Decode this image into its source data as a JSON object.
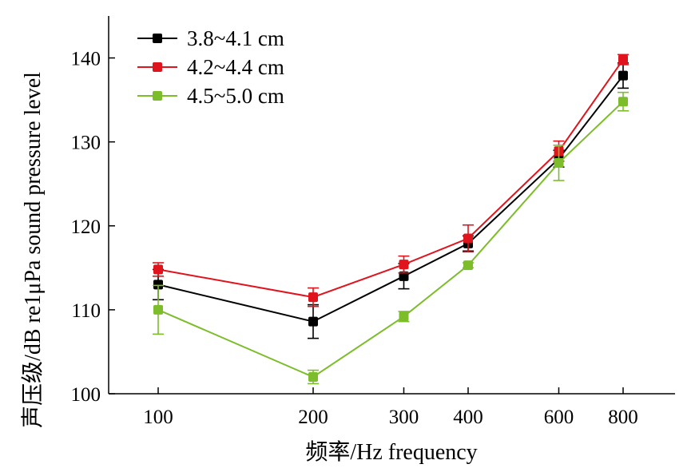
{
  "chart_data": {
    "type": "line",
    "xscale": "log",
    "x": [
      100,
      200,
      300,
      400,
      600,
      800
    ],
    "xticks": [
      "100",
      "200",
      "300",
      "400",
      "600",
      "800"
    ],
    "ylim": [
      100,
      145
    ],
    "yticks": [
      "100",
      "110",
      "120",
      "130",
      "140"
    ],
    "xlabel": "频率/Hz frequency",
    "ylabel": "声压级/dB re1μPa sound pressure level",
    "legend_position": "top-left",
    "series": [
      {
        "name": "3.8~4.1 cm",
        "color": "#000000",
        "values": [
          113.0,
          108.6,
          114.0,
          117.9,
          128.0,
          137.9
        ],
        "errors": [
          1.8,
          2.0,
          1.5,
          0.9,
          1.0,
          1.5
        ]
      },
      {
        "name": "4.2~4.4 cm",
        "color": "#e0141c",
        "values": [
          114.8,
          111.5,
          115.4,
          118.5,
          128.9,
          139.8
        ],
        "errors": [
          0.8,
          1.1,
          1.0,
          1.6,
          1.2,
          0.6
        ]
      },
      {
        "name": "4.5~5.0 cm",
        "color": "#7dbd2b",
        "values": [
          110.0,
          102.0,
          109.2,
          115.3,
          127.5,
          134.8
        ],
        "errors": [
          2.9,
          0.8,
          0.6,
          0.3,
          2.1,
          1.1
        ]
      }
    ]
  }
}
